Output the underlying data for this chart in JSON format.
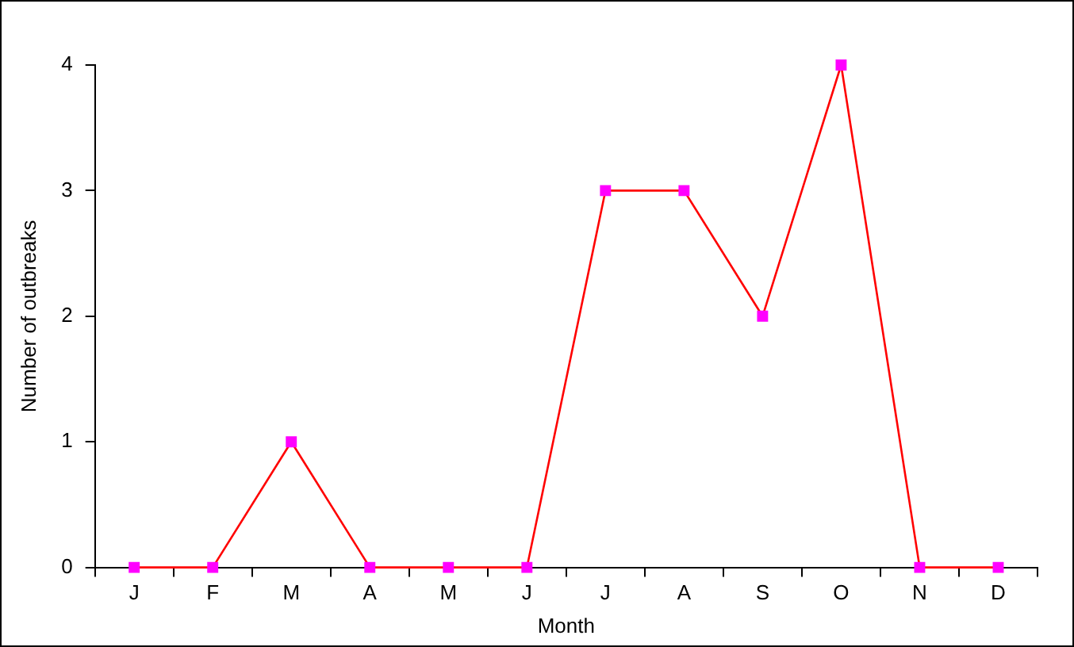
{
  "chart_data": {
    "type": "line",
    "xlabel": "Month",
    "ylabel": "Number of outbreaks",
    "categories": [
      "J",
      "F",
      "M",
      "A",
      "M",
      "J",
      "J",
      "A",
      "S",
      "O",
      "N",
      "D"
    ],
    "series": [
      {
        "color": "#ff0000",
        "colors": [
          "#ff00ff",
          "#ff00ff",
          "#ff00ff",
          "#ff00ff",
          "#ff00ff",
          "#ff00ff",
          "#ff00ff",
          "#ff00ff",
          "#ff00ff",
          "#ff00ff",
          "#ff00ff",
          "#ff00ff"
        ],
        "values": [
          0,
          0,
          1,
          0,
          0,
          0,
          3,
          3,
          2,
          4,
          0,
          0
        ]
      }
    ],
    "ylim": [
      0,
      4
    ],
    "yticks": [
      0,
      1,
      2,
      3,
      4
    ],
    "grid": false,
    "legend": false,
    "marker": "square",
    "line_style": "solid"
  }
}
